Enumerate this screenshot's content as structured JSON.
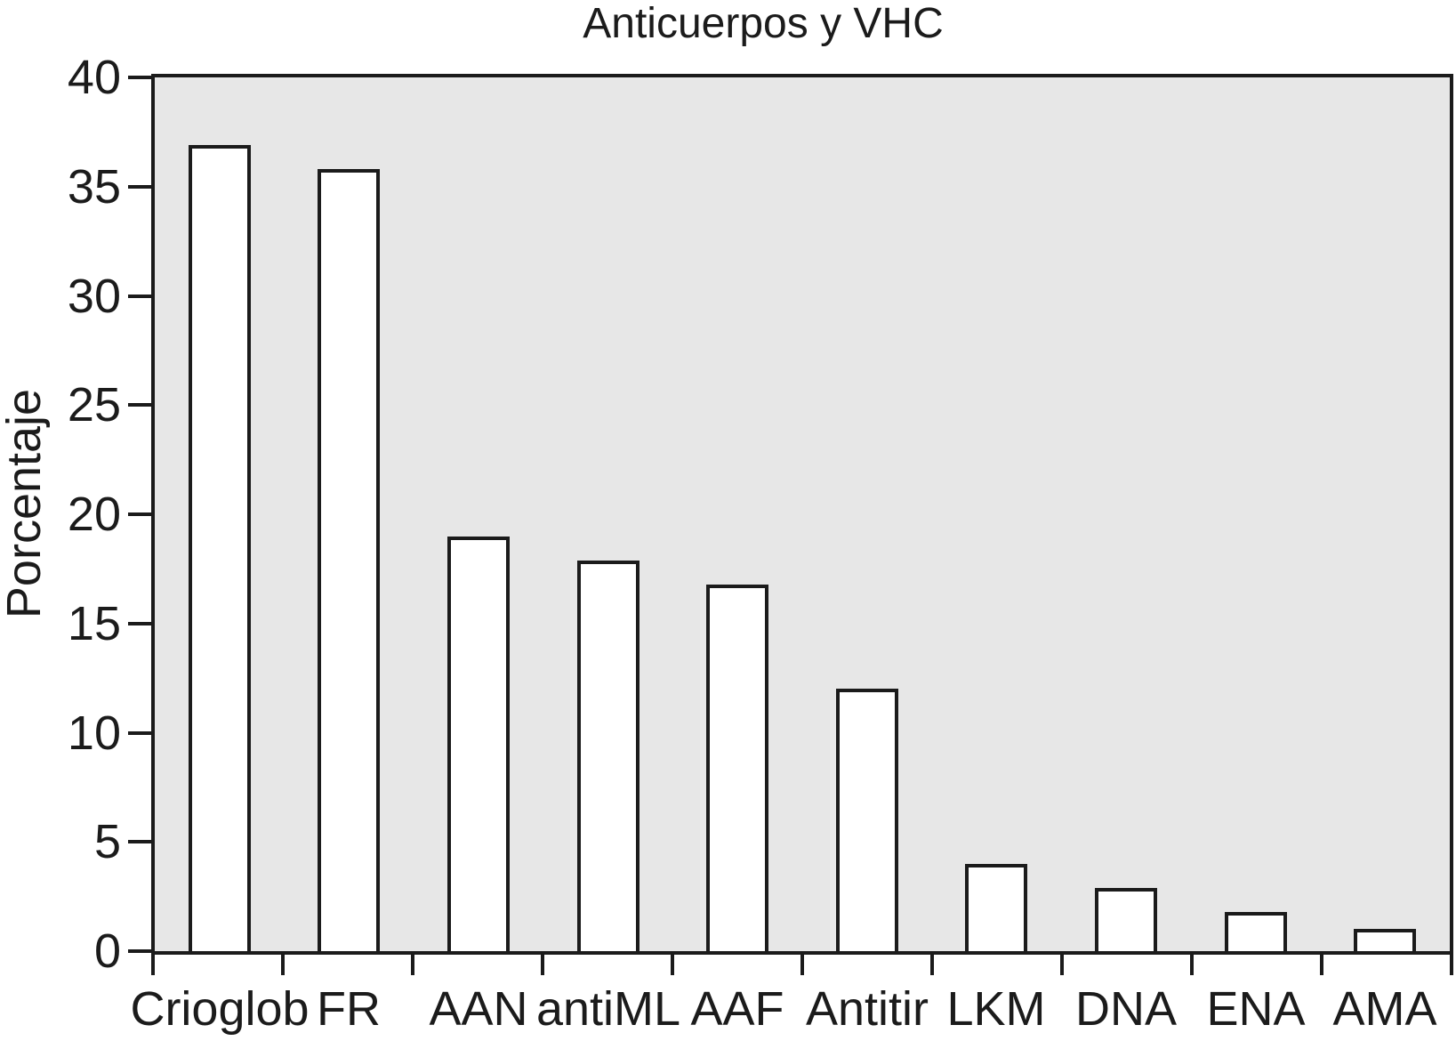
{
  "chart_data": {
    "type": "bar",
    "title": "Anticuerpos y VHC",
    "ylabel": "Porcentaje",
    "xlabel": "",
    "categories": [
      "Crioglob",
      "FR",
      "AAN",
      "antiML",
      "AAF",
      "Antitir",
      "LKM",
      "DNA",
      "ENA",
      "AMA"
    ],
    "values": [
      36.9,
      35.8,
      19,
      17.9,
      16.8,
      12,
      4,
      2.9,
      1.8,
      1
    ],
    "ylim": [
      0,
      40
    ],
    "ytick_step": 5,
    "ytick_labels": [
      "0",
      "5",
      "10",
      "15",
      "20",
      "25",
      "30",
      "35",
      "40"
    ],
    "grid": "off",
    "legend": "none",
    "colors": {
      "bar_fill": "#ffffff",
      "bar_border": "#1b1b1b",
      "plot_background": "#e7e7e7",
      "axis": "#1b1b1b",
      "text": "#1b1b1b",
      "page_background": "#ffffff"
    }
  }
}
